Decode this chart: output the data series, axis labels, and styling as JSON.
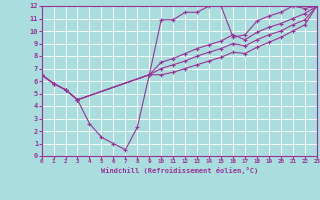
{
  "background_color": "#aadddd",
  "grid_color": "#ffffff",
  "line_color": "#993399",
  "axis_bar_color": "#993399",
  "marker": "+",
  "xlabel": "Windchill (Refroidissement éolien,°C)",
  "ylim": [
    0,
    12
  ],
  "xlim": [
    0,
    23
  ],
  "yticks": [
    0,
    1,
    2,
    3,
    4,
    5,
    6,
    7,
    8,
    9,
    10,
    11,
    12
  ],
  "xticks": [
    0,
    1,
    2,
    3,
    4,
    5,
    6,
    7,
    8,
    9,
    10,
    11,
    12,
    13,
    14,
    15,
    16,
    17,
    18,
    19,
    20,
    21,
    22,
    23
  ],
  "series": [
    {
      "x": [
        0,
        1,
        2,
        3,
        4,
        5,
        6,
        7,
        8,
        9,
        10,
        11,
        12,
        13,
        14,
        15,
        16,
        17,
        18,
        19,
        20,
        21,
        22,
        23
      ],
      "y": [
        6.5,
        5.8,
        5.3,
        4.5,
        2.6,
        1.5,
        1.0,
        0.5,
        2.3,
        6.5,
        10.9,
        10.9,
        11.5,
        11.5,
        12.0,
        12.0,
        9.5,
        9.7,
        10.8,
        11.2,
        11.5,
        12.0,
        11.8,
        12.0
      ]
    },
    {
      "x": [
        0,
        1,
        2,
        3,
        9,
        10,
        11,
        12,
        13,
        14,
        15,
        16,
        17,
        18,
        19,
        20,
        21,
        22,
        23
      ],
      "y": [
        6.5,
        5.8,
        5.3,
        4.5,
        6.5,
        7.5,
        7.8,
        8.2,
        8.6,
        8.9,
        9.2,
        9.7,
        9.3,
        9.9,
        10.3,
        10.6,
        11.0,
        11.4,
        12.0
      ]
    },
    {
      "x": [
        0,
        1,
        2,
        3,
        9,
        10,
        11,
        12,
        13,
        14,
        15,
        16,
        17,
        18,
        19,
        20,
        21,
        22,
        23
      ],
      "y": [
        6.5,
        5.8,
        5.3,
        4.5,
        6.5,
        7.0,
        7.3,
        7.6,
        8.0,
        8.3,
        8.6,
        9.0,
        8.8,
        9.3,
        9.7,
        10.0,
        10.5,
        10.9,
        12.0
      ]
    },
    {
      "x": [
        0,
        1,
        2,
        3,
        9,
        10,
        11,
        12,
        13,
        14,
        15,
        16,
        17,
        18,
        19,
        20,
        21,
        22,
        23
      ],
      "y": [
        6.5,
        5.8,
        5.3,
        4.5,
        6.5,
        6.5,
        6.7,
        7.0,
        7.3,
        7.6,
        7.9,
        8.3,
        8.2,
        8.7,
        9.1,
        9.5,
        10.0,
        10.5,
        12.0
      ]
    }
  ]
}
